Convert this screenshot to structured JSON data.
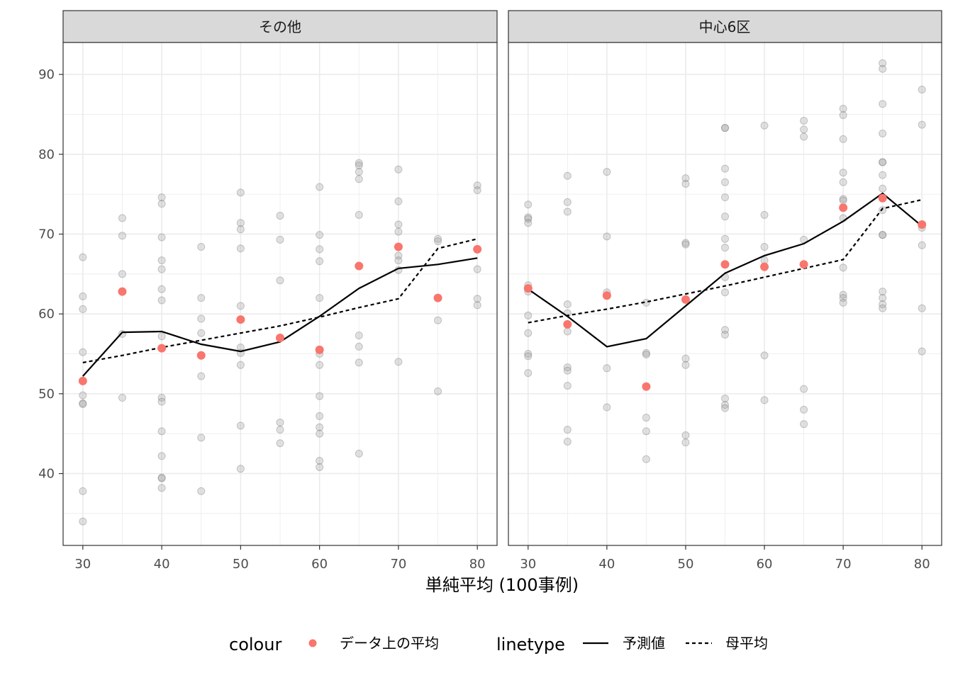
{
  "chart_data": [
    {
      "type": "scatter",
      "panel": "その他",
      "xlim": [
        27.5,
        82.5
      ],
      "ylim": [
        31,
        94
      ],
      "x_ticks": [
        30,
        40,
        50,
        60,
        70,
        80
      ],
      "y_ticks": [
        40,
        50,
        60,
        70,
        80,
        90
      ],
      "grid": true,
      "raw_points": [
        [
          30,
          67.1
        ],
        [
          30,
          62.2
        ],
        [
          30,
          60.6
        ],
        [
          30,
          55.2
        ],
        [
          30,
          49.8
        ],
        [
          30,
          48.8
        ],
        [
          30,
          48.7
        ],
        [
          30,
          37.8
        ],
        [
          30,
          34.0
        ],
        [
          35,
          72.0
        ],
        [
          35,
          69.8
        ],
        [
          35,
          65.0
        ],
        [
          35,
          57.5
        ],
        [
          35,
          49.5
        ],
        [
          40,
          74.6
        ],
        [
          40,
          73.8
        ],
        [
          40,
          69.6
        ],
        [
          40,
          66.7
        ],
        [
          40,
          65.6
        ],
        [
          40,
          63.1
        ],
        [
          40,
          61.7
        ],
        [
          40,
          57.2
        ],
        [
          40,
          49.5
        ],
        [
          40,
          49.0
        ],
        [
          40,
          45.3
        ],
        [
          40,
          42.2
        ],
        [
          40,
          39.5
        ],
        [
          40,
          39.4
        ],
        [
          40,
          38.2
        ],
        [
          45,
          68.4
        ],
        [
          45,
          62.0
        ],
        [
          45,
          59.4
        ],
        [
          45,
          57.6
        ],
        [
          45,
          52.2
        ],
        [
          45,
          44.5
        ],
        [
          45,
          37.8
        ],
        [
          50,
          75.2
        ],
        [
          50,
          71.4
        ],
        [
          50,
          70.6
        ],
        [
          50,
          68.2
        ],
        [
          50,
          61.0
        ],
        [
          50,
          55.8
        ],
        [
          50,
          55.1
        ],
        [
          50,
          53.6
        ],
        [
          50,
          46.0
        ],
        [
          50,
          40.6
        ],
        [
          55,
          72.3
        ],
        [
          55,
          69.3
        ],
        [
          55,
          64.2
        ],
        [
          55,
          46.4
        ],
        [
          55,
          45.5
        ],
        [
          55,
          43.8
        ],
        [
          60,
          75.9
        ],
        [
          60,
          69.9
        ],
        [
          60,
          68.1
        ],
        [
          60,
          66.6
        ],
        [
          60,
          62.0
        ],
        [
          60,
          55.0
        ],
        [
          60,
          53.6
        ],
        [
          60,
          49.7
        ],
        [
          60,
          47.2
        ],
        [
          60,
          45.8
        ],
        [
          60,
          45.0
        ],
        [
          60,
          41.6
        ],
        [
          60,
          40.8
        ],
        [
          65,
          78.9
        ],
        [
          65,
          78.6
        ],
        [
          65,
          77.8
        ],
        [
          65,
          76.9
        ],
        [
          65,
          72.4
        ],
        [
          65,
          57.3
        ],
        [
          65,
          55.9
        ],
        [
          65,
          53.9
        ],
        [
          65,
          42.5
        ],
        [
          70,
          78.1
        ],
        [
          70,
          74.1
        ],
        [
          70,
          71.2
        ],
        [
          70,
          70.3
        ],
        [
          70,
          67.3
        ],
        [
          70,
          66.7
        ],
        [
          70,
          65.5
        ],
        [
          70,
          54.0
        ],
        [
          75,
          69.4
        ],
        [
          75,
          69.1
        ],
        [
          75,
          62.0
        ],
        [
          75,
          59.2
        ],
        [
          75,
          50.3
        ],
        [
          80,
          76.1
        ],
        [
          80,
          75.5
        ],
        [
          80,
          65.6
        ],
        [
          80,
          61.9
        ],
        [
          80,
          61.1
        ]
      ],
      "series": [
        {
          "name": "データ上の平均",
          "x": [
            30,
            35,
            40,
            45,
            50,
            55,
            60,
            65,
            70,
            75,
            80
          ],
          "y": [
            51.6,
            62.8,
            55.7,
            54.8,
            59.3,
            57.0,
            55.5,
            66.0,
            68.4,
            62.0,
            68.1
          ]
        },
        {
          "name": "予測値",
          "x": [
            30,
            35,
            40,
            45,
            50,
            55,
            60,
            65,
            70,
            75,
            80
          ],
          "y": [
            52.2,
            57.7,
            57.8,
            56.2,
            55.3,
            56.5,
            59.7,
            63.2,
            65.7,
            66.2,
            67.0
          ]
        },
        {
          "name": "母平均",
          "x": [
            30,
            35,
            40,
            45,
            50,
            55,
            60,
            65,
            70,
            75,
            80
          ],
          "y": [
            53.9,
            54.8,
            55.8,
            56.7,
            57.6,
            58.5,
            59.6,
            60.8,
            61.9,
            68.2,
            69.4
          ]
        }
      ]
    },
    {
      "type": "scatter",
      "panel": "中心6区",
      "xlim": [
        27.5,
        82.5
      ],
      "ylim": [
        31,
        94
      ],
      "x_ticks": [
        30,
        40,
        50,
        60,
        70,
        80
      ],
      "y_ticks": [
        40,
        50,
        60,
        70,
        80,
        90
      ],
      "grid": true,
      "raw_points": [
        [
          30,
          73.7
        ],
        [
          30,
          72.1
        ],
        [
          30,
          71.9
        ],
        [
          30,
          71.4
        ],
        [
          30,
          63.6
        ],
        [
          30,
          62.8
        ],
        [
          30,
          59.8
        ],
        [
          30,
          57.6
        ],
        [
          30,
          55.0
        ],
        [
          30,
          54.7
        ],
        [
          30,
          52.6
        ],
        [
          35,
          77.3
        ],
        [
          35,
          74.0
        ],
        [
          35,
          72.8
        ],
        [
          35,
          61.2
        ],
        [
          35,
          60.1
        ],
        [
          35,
          57.8
        ],
        [
          35,
          53.3
        ],
        [
          35,
          52.9
        ],
        [
          35,
          51.0
        ],
        [
          35,
          45.5
        ],
        [
          35,
          44.0
        ],
        [
          40,
          77.8
        ],
        [
          40,
          69.7
        ],
        [
          40,
          62.7
        ],
        [
          40,
          53.2
        ],
        [
          40,
          48.3
        ],
        [
          45,
          61.4
        ],
        [
          45,
          55.1
        ],
        [
          45,
          54.9
        ],
        [
          45,
          47.0
        ],
        [
          45,
          45.3
        ],
        [
          45,
          41.8
        ],
        [
          50,
          77.0
        ],
        [
          50,
          76.3
        ],
        [
          50,
          68.9
        ],
        [
          50,
          68.7
        ],
        [
          50,
          54.4
        ],
        [
          50,
          53.6
        ],
        [
          50,
          44.8
        ],
        [
          50,
          43.9
        ],
        [
          55,
          83.3
        ],
        [
          55,
          83.3
        ],
        [
          55,
          78.2
        ],
        [
          55,
          76.5
        ],
        [
          55,
          74.6
        ],
        [
          55,
          72.2
        ],
        [
          55,
          69.4
        ],
        [
          55,
          68.3
        ],
        [
          55,
          64.6
        ],
        [
          55,
          62.7
        ],
        [
          55,
          58.0
        ],
        [
          55,
          57.4
        ],
        [
          55,
          49.4
        ],
        [
          55,
          48.6
        ],
        [
          55,
          48.2
        ],
        [
          60,
          83.6
        ],
        [
          60,
          72.4
        ],
        [
          60,
          68.4
        ],
        [
          60,
          66.7
        ],
        [
          60,
          54.8
        ],
        [
          60,
          49.2
        ],
        [
          65,
          84.2
        ],
        [
          65,
          83.1
        ],
        [
          65,
          82.2
        ],
        [
          65,
          69.3
        ],
        [
          65,
          50.6
        ],
        [
          65,
          48.0
        ],
        [
          65,
          46.2
        ],
        [
          70,
          85.7
        ],
        [
          70,
          84.9
        ],
        [
          70,
          81.9
        ],
        [
          70,
          77.7
        ],
        [
          70,
          76.5
        ],
        [
          70,
          74.4
        ],
        [
          70,
          74.2
        ],
        [
          70,
          72.0
        ],
        [
          70,
          65.8
        ],
        [
          70,
          62.4
        ],
        [
          70,
          62.0
        ],
        [
          70,
          61.4
        ],
        [
          75,
          91.4
        ],
        [
          75,
          90.7
        ],
        [
          75,
          86.3
        ],
        [
          75,
          82.6
        ],
        [
          75,
          79.0
        ],
        [
          75,
          79.0
        ],
        [
          75,
          77.4
        ],
        [
          75,
          75.7
        ],
        [
          75,
          73.0
        ],
        [
          75,
          69.9
        ],
        [
          75,
          69.9
        ],
        [
          75,
          62.8
        ],
        [
          75,
          62.0
        ],
        [
          75,
          61.2
        ],
        [
          75,
          60.7
        ],
        [
          80,
          88.1
        ],
        [
          80,
          83.7
        ],
        [
          80,
          70.8
        ],
        [
          80,
          68.6
        ],
        [
          80,
          60.7
        ],
        [
          80,
          55.3
        ]
      ],
      "series": [
        {
          "name": "データ上の平均",
          "x": [
            30,
            35,
            40,
            45,
            50,
            55,
            60,
            65,
            70,
            75,
            80
          ],
          "y": [
            63.2,
            58.7,
            62.3,
            50.9,
            61.8,
            66.2,
            65.9,
            66.2,
            73.3,
            74.5,
            71.2
          ]
        },
        {
          "name": "予測値",
          "x": [
            30,
            35,
            40,
            45,
            50,
            55,
            60,
            65,
            70,
            75,
            80
          ],
          "y": [
            63.1,
            59.7,
            55.9,
            56.9,
            61.0,
            65.1,
            67.3,
            68.8,
            71.6,
            75.1,
            71.0
          ]
        },
        {
          "name": "母平均",
          "x": [
            30,
            35,
            40,
            45,
            50,
            55,
            60,
            65,
            70,
            75,
            80
          ],
          "y": [
            58.9,
            59.8,
            60.6,
            61.5,
            62.5,
            63.5,
            64.6,
            65.7,
            66.8,
            73.2,
            74.3
          ]
        }
      ]
    }
  ],
  "xlabel": "単純平均 (100事例)",
  "legend": {
    "colour_title": "colour",
    "colour_label": "データ上の平均",
    "linetype_title": "linetype",
    "solid_label": "予測値",
    "dashed_label": "母平均",
    "position": "bottom"
  },
  "colors": {
    "mean_point": "#F8766D",
    "raw_point": "#9a9a9a",
    "line": "#000000",
    "strip_bg": "#d9d9d9",
    "grid": "#ebebeb"
  }
}
